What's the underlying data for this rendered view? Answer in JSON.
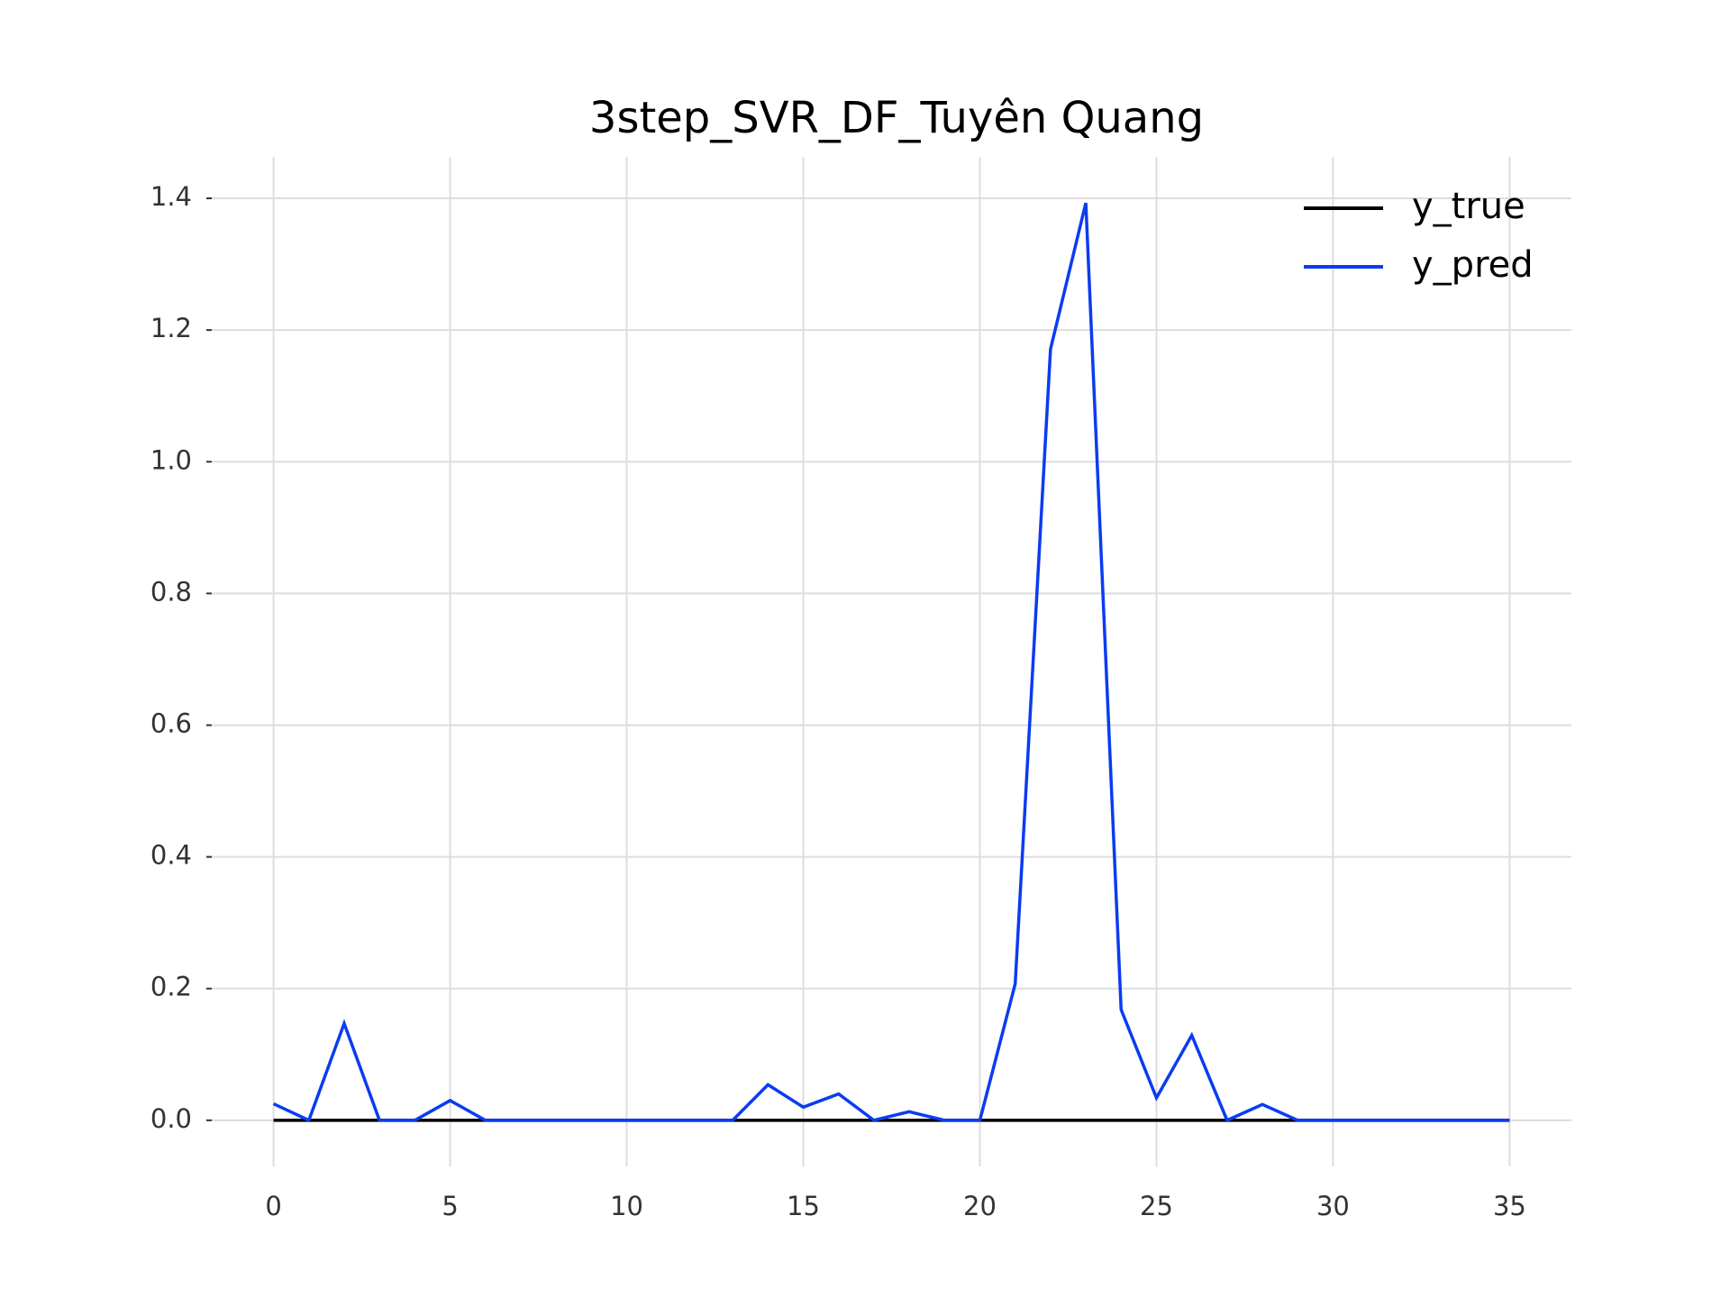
{
  "chart_data": {
    "type": "line",
    "title": "3step_SVR_DF_Tuyên Quang",
    "x": [
      0,
      1,
      2,
      3,
      4,
      5,
      6,
      7,
      8,
      9,
      10,
      11,
      12,
      13,
      14,
      15,
      16,
      17,
      18,
      19,
      20,
      21,
      22,
      23,
      24,
      25,
      26,
      27,
      28,
      29,
      30,
      31,
      32,
      33,
      34,
      35
    ],
    "series": [
      {
        "name": "y_true",
        "color": "#000000",
        "values": [
          0,
          0,
          0,
          0,
          0,
          0,
          0,
          0,
          0,
          0,
          0,
          0,
          0,
          0,
          0,
          0,
          0,
          0,
          0,
          0,
          0,
          0,
          0,
          0,
          0,
          0,
          0,
          0,
          0,
          0,
          0,
          0,
          0,
          0,
          0,
          0
        ]
      },
      {
        "name": "y_pred",
        "color": "#0a3cf0",
        "values": [
          0.025,
          0,
          0.147,
          0,
          0,
          0.03,
          0,
          0,
          0,
          0,
          0,
          0,
          0,
          0,
          0.054,
          0.02,
          0.04,
          0,
          0.013,
          0,
          0,
          0.207,
          1.171,
          1.393,
          0.168,
          0.034,
          0.129,
          0,
          0.024,
          0,
          0,
          0,
          0,
          0,
          0,
          0
        ]
      }
    ],
    "xlim": [
      -1.75,
      36.75
    ],
    "xticks": [
      0,
      5,
      10,
      15,
      20,
      25,
      30,
      35
    ],
    "ylim": [
      -0.07,
      1.463
    ],
    "yticks": [
      {
        "value": 0,
        "label": "0.0"
      },
      0.2,
      0.4,
      0.6,
      0.8,
      {
        "value": 1,
        "label": "1.0"
      },
      1.2,
      1.4
    ],
    "grid": true,
    "legend": "upper right"
  }
}
